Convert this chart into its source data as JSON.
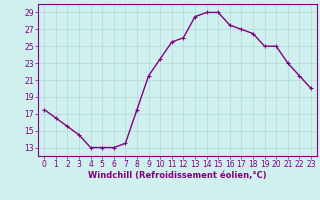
{
  "x": [
    0,
    1,
    2,
    3,
    4,
    5,
    6,
    7,
    8,
    9,
    10,
    11,
    12,
    13,
    14,
    15,
    16,
    17,
    18,
    19,
    20,
    21,
    22,
    23
  ],
  "y": [
    17.5,
    16.5,
    15.5,
    14.5,
    13.0,
    13.0,
    13.0,
    13.5,
    17.5,
    21.5,
    23.5,
    25.5,
    26.0,
    28.5,
    29.0,
    29.0,
    27.5,
    27.0,
    26.5,
    25.0,
    25.0,
    23.0,
    21.5,
    20.0
  ],
  "line_color": "#800080",
  "marker": "+",
  "marker_color": "#800080",
  "bg_color": "#d0f0f0",
  "grid_color": "#b0d8d8",
  "tick_color": "#800080",
  "xlabel": "Windchill (Refroidissement éolien,°C)",
  "xlabel_fontsize": 6,
  "ylim": [
    12,
    30
  ],
  "xlim": [
    -0.5,
    23.5
  ],
  "yticks": [
    13,
    15,
    17,
    19,
    21,
    23,
    25,
    27,
    29
  ],
  "xticks": [
    0,
    1,
    2,
    3,
    4,
    5,
    6,
    7,
    8,
    9,
    10,
    11,
    12,
    13,
    14,
    15,
    16,
    17,
    18,
    19,
    20,
    21,
    22,
    23
  ],
  "tick_fontsize": 5.5,
  "linewidth": 1.0,
  "fig_width": 3.2,
  "fig_height": 2.0,
  "dpi": 100
}
